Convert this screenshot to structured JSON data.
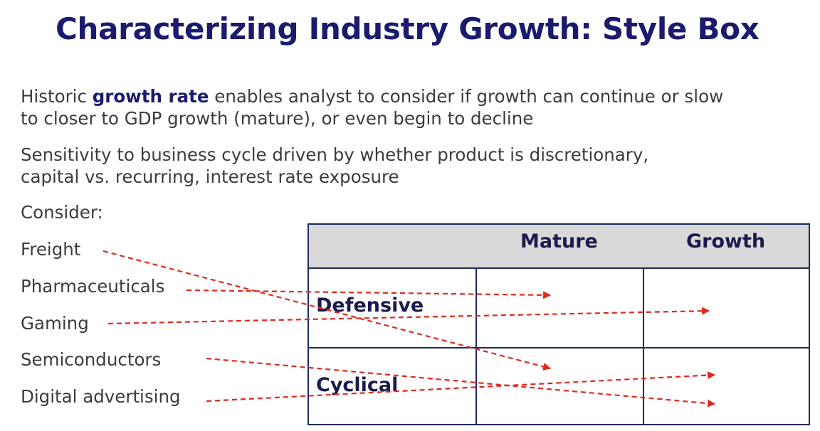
{
  "title": "Characterizing Industry Growth: Style Box",
  "paragraph1": {
    "prefix": "Historic ",
    "bold": "growth rate",
    "line1_rest": " enables analyst to consider if growth can continue or slow",
    "line2": "to closer to GDP growth (mature), or even begin to decline"
  },
  "paragraph2": {
    "line1": "Sensitivity to business cycle driven by whether product is discretionary,",
    "line2": "capital vs. recurring, interest rate exposure"
  },
  "consider_label": "Consider:",
  "industries": [
    "Freight",
    "Pharmaceuticals",
    "Gaming",
    "Semiconductors",
    "Digital advertising"
  ],
  "style_box": {
    "columns": [
      "Mature",
      "Growth"
    ],
    "rows": [
      "Defensive",
      "Cyclical"
    ]
  },
  "arrow_color": "#e0281e",
  "title_color": "#1a1a6e",
  "mapping": [
    {
      "industry": "Freight",
      "row": "Cyclical",
      "column": "Mature"
    },
    {
      "industry": "Pharmaceuticals",
      "row": "Defensive",
      "column": "Mature"
    },
    {
      "industry": "Gaming",
      "row": "Defensive",
      "column": "Growth"
    },
    {
      "industry": "Semiconductors",
      "row": "Cyclical",
      "column": "Growth"
    },
    {
      "industry": "Digital advertising",
      "row": "Cyclical",
      "column": "Growth"
    }
  ]
}
